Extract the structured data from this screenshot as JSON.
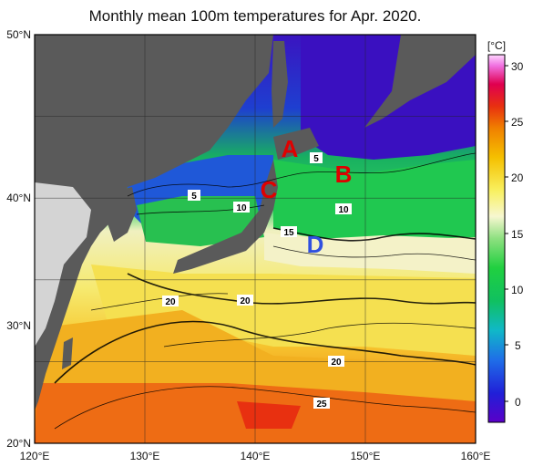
{
  "title": "Monthly mean 100m temperatures for Apr. 2020.",
  "colorbar": {
    "unit": "[°C]",
    "ticks": [
      "30",
      "25",
      "20",
      "15",
      "10",
      "5",
      "0"
    ]
  },
  "axes": {
    "x_ticks": [
      "120°E",
      "130°E",
      "140°E",
      "150°E",
      "160°E"
    ],
    "y_ticks": [
      "50°N",
      "40°N",
      "30°N",
      "20°N"
    ]
  },
  "points": [
    {
      "id": "A",
      "label": "A",
      "color": "#e00000"
    },
    {
      "id": "B",
      "label": "B",
      "color": "#e00000"
    },
    {
      "id": "C",
      "label": "C",
      "color": "#e00000"
    },
    {
      "id": "D",
      "label": "D",
      "color": "#3050e0"
    }
  ],
  "contour_labels": [
    "5",
    "5",
    "10",
    "10",
    "15",
    "20",
    "20",
    "20",
    "25"
  ],
  "colors": {
    "land": "#5a5a5a",
    "land_light": "#d4d4d4"
  }
}
